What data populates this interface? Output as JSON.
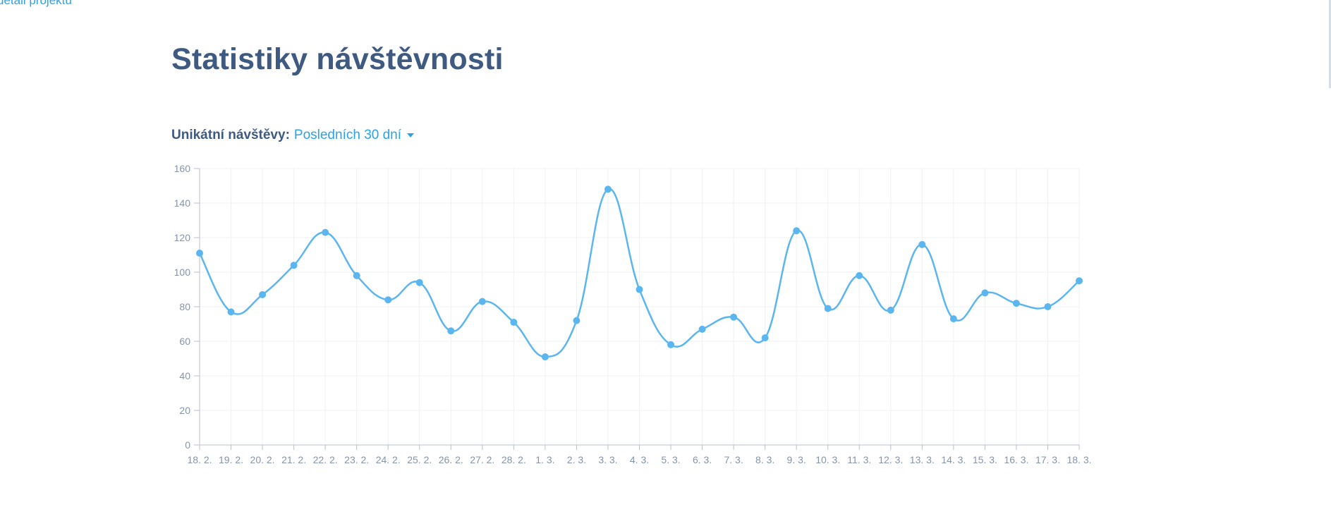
{
  "top_link": "detail projektu",
  "page": {
    "title": "Statistiky návštěvnosti"
  },
  "filter": {
    "label": "Unikátní návštěvy:",
    "selected": "Posledních 30 dní"
  },
  "colors": {
    "accent": "#2aa3e6",
    "line": "#5bb6f0",
    "title": "#3f5a80",
    "grid": "#eef0f3",
    "axis": "#b8bfcb",
    "tick": "#8593ad"
  },
  "chart_data": {
    "type": "line",
    "title": "",
    "xlabel": "",
    "ylabel": "",
    "ylim": [
      0,
      160
    ],
    "yticks": [
      0,
      20,
      40,
      60,
      80,
      100,
      120,
      140,
      160
    ],
    "grid": true,
    "categories": [
      "18. 2.",
      "19. 2.",
      "20. 2.",
      "21. 2.",
      "22. 2.",
      "23. 2.",
      "24. 2.",
      "25. 2.",
      "26. 2.",
      "27. 2.",
      "28. 2.",
      "1. 3.",
      "2. 3.",
      "3. 3.",
      "4. 3.",
      "5. 3.",
      "6. 3.",
      "7. 3.",
      "8. 3.",
      "9. 3.",
      "10. 3.",
      "11. 3.",
      "12. 3.",
      "13. 3.",
      "14. 3.",
      "15. 3.",
      "16. 3.",
      "17. 3.",
      "18. 3."
    ],
    "series": [
      {
        "values": [
          111,
          77,
          87,
          104,
          123,
          98,
          84,
          94,
          66,
          83,
          71,
          51,
          72,
          148,
          90,
          58,
          67,
          74,
          62,
          124,
          79,
          98,
          78,
          116,
          73,
          88,
          82,
          80,
          95
        ]
      }
    ]
  }
}
